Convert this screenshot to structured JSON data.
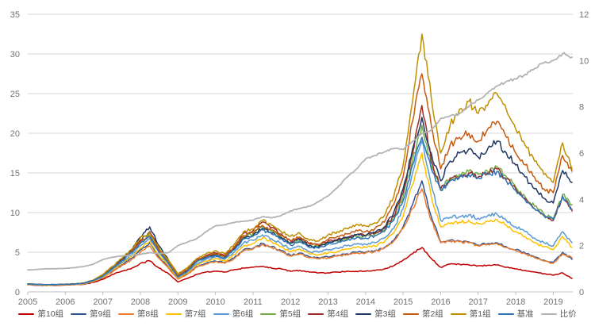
{
  "window": {
    "title": ""
  },
  "chart_data": {
    "type": "line",
    "title": "",
    "xlabel": "",
    "ylabel_left": "",
    "ylabel_right": "",
    "grid": true,
    "legend_position": "bottom",
    "left_axis": {
      "min": 0,
      "max": 35,
      "ticks": [
        35,
        30,
        25,
        20,
        15,
        10,
        5,
        0
      ]
    },
    "right_axis": {
      "min": 0,
      "max": 12,
      "ticks": [
        12,
        10,
        8,
        6,
        4,
        2,
        0
      ]
    },
    "x_ticks": [
      2005,
      2006,
      2007,
      2008,
      2009,
      2010,
      2011,
      2012,
      2013,
      2014,
      2015,
      2016,
      2017,
      2018,
      2019
    ],
    "x_start": 2005,
    "x_step": 0.25,
    "x": [
      2005,
      2005.25,
      2005.5,
      2005.75,
      2006,
      2006.25,
      2006.5,
      2006.75,
      2007,
      2007.25,
      2007.5,
      2007.75,
      2008,
      2008.25,
      2008.5,
      2008.75,
      2009,
      2009.25,
      2009.5,
      2009.75,
      2010,
      2010.25,
      2010.5,
      2010.75,
      2011,
      2011.25,
      2011.5,
      2011.75,
      2012,
      2012.25,
      2012.5,
      2012.75,
      2013,
      2013.25,
      2013.5,
      2013.75,
      2014,
      2014.25,
      2014.5,
      2014.75,
      2015,
      2015.25,
      2015.5,
      2015.75,
      2016,
      2016.25,
      2016.5,
      2016.75,
      2017,
      2017.25,
      2017.5,
      2017.75,
      2018,
      2018.25,
      2018.5,
      2018.75,
      2019,
      2019.25,
      2019.5
    ],
    "series": [
      {
        "name": "第10组",
        "color": "#C00000",
        "axis": "left",
        "values": [
          0.9,
          0.85,
          0.8,
          0.83,
          0.86,
          0.9,
          0.95,
          1.2,
          1.6,
          2.2,
          2.6,
          2.9,
          3.6,
          3.9,
          3.0,
          2.3,
          1.25,
          1.7,
          2.2,
          2.5,
          2.6,
          2.5,
          2.8,
          3.0,
          3.1,
          3.2,
          3.0,
          2.9,
          2.6,
          2.7,
          2.5,
          2.4,
          2.4,
          2.5,
          2.6,
          2.6,
          2.6,
          2.7,
          2.9,
          3.3,
          4.0,
          4.8,
          5.6,
          4.2,
          3.1,
          3.5,
          3.5,
          3.4,
          3.3,
          3.35,
          3.4,
          3.1,
          2.9,
          2.7,
          2.5,
          2.3,
          2.1,
          2.4,
          1.7
        ]
      },
      {
        "name": "第9组",
        "color": "#2F5597",
        "axis": "left",
        "values": [
          0.95,
          0.9,
          0.86,
          0.89,
          0.92,
          0.96,
          1.03,
          1.35,
          1.8,
          2.6,
          3.4,
          4.2,
          5.3,
          6.2,
          4.4,
          3.1,
          1.7,
          2.3,
          3.2,
          3.6,
          3.9,
          3.7,
          4.3,
          5.3,
          5.5,
          6.1,
          5.7,
          5.2,
          4.6,
          4.9,
          4.4,
          4.3,
          4.4,
          4.6,
          4.8,
          5.0,
          5.0,
          5.2,
          5.6,
          6.5,
          8.2,
          11.0,
          14.0,
          9.5,
          6.3,
          6.5,
          6.4,
          6.3,
          5.9,
          6.1,
          6.2,
          5.7,
          5.3,
          4.9,
          4.4,
          4.0,
          3.7,
          5.0,
          4.1
        ]
      },
      {
        "name": "第8组",
        "color": "#ED7D31",
        "axis": "left",
        "values": [
          0.92,
          0.88,
          0.84,
          0.87,
          0.9,
          0.93,
          1.0,
          1.3,
          1.75,
          2.5,
          3.3,
          4.0,
          5.0,
          5.8,
          4.2,
          3.0,
          1.6,
          2.2,
          3.1,
          3.5,
          3.8,
          3.6,
          4.2,
          5.2,
          5.4,
          6.0,
          5.6,
          5.1,
          4.5,
          4.8,
          4.3,
          4.2,
          4.3,
          4.5,
          4.7,
          4.9,
          4.9,
          5.1,
          5.5,
          6.4,
          8.0,
          10.5,
          13.0,
          9.0,
          6.2,
          6.4,
          6.3,
          6.2,
          5.8,
          6.0,
          6.1,
          5.6,
          5.2,
          4.8,
          4.3,
          3.9,
          3.6,
          4.8,
          4.3
        ]
      },
      {
        "name": "第7组",
        "color": "#FFC000",
        "axis": "left",
        "values": [
          0.93,
          0.89,
          0.85,
          0.88,
          0.91,
          0.95,
          1.02,
          1.35,
          1.85,
          2.7,
          3.6,
          4.4,
          5.5,
          6.4,
          4.6,
          3.3,
          1.75,
          2.4,
          3.4,
          3.9,
          4.2,
          3.9,
          4.7,
          5.8,
          6.1,
          6.8,
          6.3,
          5.7,
          5.1,
          5.4,
          4.8,
          4.7,
          4.9,
          5.1,
          5.4,
          5.6,
          5.6,
          5.8,
          6.3,
          7.4,
          9.5,
          13.5,
          17.5,
          12.0,
          8.2,
          8.6,
          8.8,
          9.0,
          8.6,
          8.9,
          9.1,
          8.4,
          7.6,
          7.0,
          6.2,
          5.7,
          5.3,
          7.0,
          5.6
        ]
      },
      {
        "name": "第6组",
        "color": "#5B9BD5",
        "axis": "left",
        "values": [
          0.95,
          0.9,
          0.87,
          0.9,
          0.93,
          0.97,
          1.05,
          1.4,
          1.9,
          2.8,
          3.7,
          4.6,
          5.8,
          6.8,
          4.9,
          3.5,
          1.85,
          2.5,
          3.6,
          4.1,
          4.4,
          4.1,
          5.0,
          6.2,
          6.5,
          7.2,
          6.7,
          6.1,
          5.4,
          5.7,
          5.1,
          5.0,
          5.3,
          5.5,
          5.8,
          6.0,
          6.0,
          6.2,
          6.8,
          8.0,
          10.5,
          15.0,
          19.0,
          13.5,
          9.0,
          9.4,
          9.5,
          9.7,
          9.3,
          9.6,
          9.8,
          9.0,
          8.2,
          7.6,
          6.8,
          6.2,
          5.8,
          7.6,
          6.2
        ]
      },
      {
        "name": "第5组",
        "color": "#70AD47",
        "axis": "left",
        "values": [
          0.98,
          0.94,
          0.9,
          0.92,
          0.95,
          1.0,
          1.1,
          1.45,
          2.0,
          3.0,
          4.0,
          5.0,
          6.3,
          7.2,
          5.2,
          3.7,
          1.95,
          2.6,
          3.9,
          4.4,
          4.7,
          4.4,
          5.5,
          7.0,
          7.3,
          8.2,
          7.6,
          7.0,
          6.1,
          6.5,
          5.8,
          5.7,
          6.2,
          6.4,
          6.7,
          7.0,
          7.0,
          7.3,
          7.8,
          9.2,
          12.0,
          16.5,
          21.0,
          16.0,
          13.0,
          14.4,
          14.8,
          15.2,
          14.8,
          15.2,
          15.8,
          14.5,
          13.2,
          12.0,
          10.8,
          9.8,
          9.2,
          12.3,
          11.0
        ]
      },
      {
        "name": "第4组",
        "color": "#9E2B25",
        "axis": "left",
        "values": [
          1.0,
          0.95,
          0.9,
          0.93,
          0.96,
          1.0,
          1.1,
          1.48,
          2.1,
          3.1,
          4.1,
          5.1,
          6.5,
          7.6,
          5.4,
          3.8,
          2.0,
          2.7,
          4.1,
          4.6,
          4.9,
          4.6,
          5.7,
          7.4,
          7.7,
          8.8,
          8.1,
          7.3,
          6.4,
          6.8,
          6.0,
          5.9,
          6.4,
          6.6,
          6.9,
          7.2,
          7.1,
          7.4,
          8.0,
          9.5,
          12.5,
          17.5,
          23.5,
          16.5,
          13.0,
          14.2,
          14.5,
          15.0,
          14.5,
          15.0,
          15.5,
          14.2,
          13.0,
          11.8,
          10.5,
          9.6,
          9.0,
          12.0,
          10.2
        ]
      },
      {
        "name": "第3组",
        "color": "#203864",
        "axis": "left",
        "values": [
          1.0,
          0.96,
          0.92,
          0.94,
          0.97,
          1.02,
          1.12,
          1.5,
          2.1,
          3.1,
          4.0,
          5.2,
          6.9,
          8.2,
          5.8,
          4.0,
          2.1,
          2.8,
          3.9,
          4.4,
          4.7,
          4.4,
          5.4,
          6.8,
          7.1,
          8.0,
          7.4,
          6.8,
          6.2,
          6.6,
          5.8,
          5.7,
          6.2,
          6.5,
          6.8,
          7.2,
          7.1,
          7.5,
          8.2,
          10.0,
          13.0,
          18.0,
          22.0,
          17.5,
          14.0,
          16.5,
          17.5,
          18.0,
          17.0,
          18.0,
          19.0,
          17.5,
          16.0,
          14.5,
          13.0,
          11.8,
          11.2,
          15.3,
          13.8
        ]
      },
      {
        "name": "第2组",
        "color": "#C55A11",
        "axis": "left",
        "values": [
          1.0,
          0.95,
          0.9,
          0.92,
          0.95,
          1.0,
          1.08,
          1.45,
          2.1,
          3.0,
          3.9,
          5.0,
          6.3,
          7.0,
          5.2,
          3.8,
          2.1,
          2.8,
          3.9,
          4.5,
          4.8,
          4.5,
          5.6,
          7.1,
          7.4,
          8.4,
          7.8,
          7.1,
          6.5,
          6.9,
          6.1,
          6.0,
          6.6,
          7.0,
          7.3,
          7.8,
          7.6,
          8.0,
          8.8,
          11.0,
          14.5,
          21.5,
          27.5,
          21.0,
          15.5,
          18.5,
          19.5,
          20.0,
          19.0,
          20.5,
          21.5,
          19.5,
          17.5,
          16.0,
          14.5,
          13.0,
          12.5,
          17.2,
          15.2
        ]
      },
      {
        "name": "第1组",
        "color": "#BF8F00",
        "axis": "left",
        "values": [
          1.0,
          0.95,
          0.9,
          0.92,
          0.95,
          1.0,
          1.1,
          1.5,
          2.2,
          3.2,
          4.2,
          5.3,
          6.8,
          7.5,
          5.5,
          4.0,
          2.3,
          3.0,
          4.2,
          4.8,
          5.2,
          4.8,
          6.0,
          7.6,
          7.9,
          9.0,
          8.4,
          7.6,
          7.0,
          7.4,
          6.5,
          6.4,
          7.2,
          7.6,
          8.0,
          8.5,
          8.3,
          8.7,
          9.6,
          12.0,
          16.0,
          24.0,
          32.5,
          24.5,
          17.5,
          21.0,
          23.0,
          24.0,
          22.5,
          23.5,
          25.0,
          23.0,
          20.5,
          18.5,
          16.5,
          14.8,
          13.8,
          18.8,
          15.5
        ]
      },
      {
        "name": "基准",
        "color": "#2E75B6",
        "axis": "left",
        "values": [
          1.0,
          0.95,
          0.91,
          0.93,
          0.96,
          1.0,
          1.1,
          1.45,
          2.0,
          2.9,
          3.9,
          4.9,
          6.1,
          7.0,
          5.0,
          3.6,
          1.9,
          2.6,
          3.8,
          4.3,
          4.6,
          4.3,
          5.3,
          6.7,
          7.0,
          7.8,
          7.3,
          6.7,
          5.9,
          6.3,
          5.6,
          5.5,
          6.0,
          6.2,
          6.5,
          6.8,
          6.8,
          7.1,
          7.6,
          9.0,
          11.5,
          16.0,
          19.5,
          15.5,
          12.8,
          14.0,
          14.4,
          14.8,
          14.4,
          14.8,
          15.2,
          14.0,
          12.8,
          11.6,
          10.5,
          9.7,
          9.1,
          12.1,
          10.4
        ]
      },
      {
        "name": "比价",
        "color": "#B3B3B3",
        "axis": "right",
        "values": [
          0.95,
          0.97,
          1.0,
          1.0,
          1.02,
          1.05,
          1.1,
          1.2,
          1.4,
          1.5,
          1.55,
          1.6,
          1.62,
          1.7,
          1.65,
          1.7,
          2.0,
          2.15,
          2.3,
          2.6,
          2.85,
          2.9,
          3.0,
          3.05,
          3.1,
          3.25,
          3.2,
          3.3,
          3.5,
          3.6,
          3.7,
          3.9,
          4.15,
          4.5,
          4.95,
          5.3,
          5.75,
          5.9,
          6.05,
          6.2,
          6.15,
          6.5,
          6.85,
          7.0,
          7.5,
          7.6,
          7.7,
          8.0,
          8.3,
          8.6,
          8.9,
          9.1,
          9.2,
          9.4,
          9.65,
          9.9,
          10.0,
          10.3,
          10.15
        ]
      }
    ],
    "style": {
      "grid_color": "#D9D9D9",
      "axis_line_color": "#BFBFBF",
      "tick_label_color": "#737373",
      "legend_label_color": "#595959",
      "background": "#FFFFFF"
    }
  }
}
